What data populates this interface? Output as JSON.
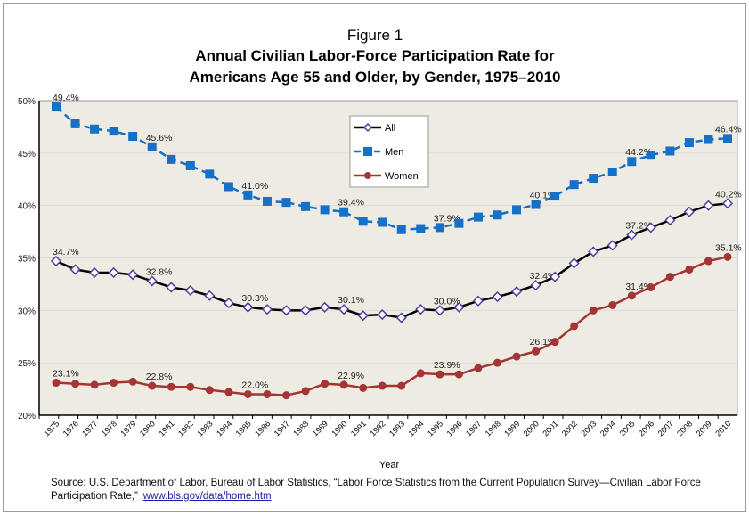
{
  "chart_data": {
    "type": "line",
    "title_lines": [
      "Figure 1",
      "Annual Civilian Labor-Force Participation Rate for",
      "Americans Age 55 and Older, by Gender, 1975–2010"
    ],
    "xlabel": "Year",
    "ylabel": "",
    "ylim": [
      20,
      50
    ],
    "yticks": [
      "20%",
      "25%",
      "30%",
      "35%",
      "40%",
      "45%",
      "50%"
    ],
    "ytick_values": [
      20,
      25,
      30,
      35,
      40,
      45,
      50
    ],
    "x": [
      "1975",
      "1976",
      "1977",
      "1978",
      "1979",
      "1980",
      "1981",
      "1982",
      "1983",
      "1984",
      "1985",
      "1986",
      "1987",
      "1988",
      "1989",
      "1990",
      "1991",
      "1992",
      "1993",
      "1994",
      "1995",
      "1996",
      "1997",
      "1998",
      "1999",
      "2000",
      "2001",
      "2002",
      "2003",
      "2004",
      "2005",
      "2006",
      "2007",
      "2008",
      "2009",
      "2010"
    ],
    "grid": true,
    "legend_position": "top-center",
    "background": "#EEEBE2",
    "series": [
      {
        "name": "All",
        "color": "#000000",
        "marker": "open-diamond",
        "marker_color": "#4B3FA0",
        "dashed": false,
        "values": [
          34.7,
          33.9,
          33.6,
          33.6,
          33.4,
          32.8,
          32.2,
          31.9,
          31.4,
          30.7,
          30.3,
          30.1,
          30.0,
          30.0,
          30.3,
          30.1,
          29.5,
          29.6,
          29.3,
          30.1,
          30.0,
          30.3,
          30.9,
          31.3,
          31.8,
          32.4,
          33.2,
          34.5,
          35.6,
          36.2,
          37.2,
          37.9,
          38.6,
          39.4,
          40.0,
          40.2
        ],
        "labels": {
          "1975": "34.7%",
          "1980": "32.8%",
          "1985": "30.3%",
          "1990": "30.1%",
          "1995": "30.0%",
          "2000": "32.4%",
          "2005": "37.2%",
          "2010": "40.2%"
        }
      },
      {
        "name": "Men",
        "color": "#1570C8",
        "marker": "square",
        "marker_color": "#1570C8",
        "dashed": true,
        "values": [
          49.4,
          47.8,
          47.3,
          47.1,
          46.6,
          45.6,
          44.4,
          43.8,
          43.0,
          41.8,
          41.0,
          40.4,
          40.3,
          39.9,
          39.6,
          39.4,
          38.5,
          38.4,
          37.7,
          37.8,
          37.9,
          38.3,
          38.9,
          39.1,
          39.6,
          40.1,
          40.9,
          42.0,
          42.6,
          43.2,
          44.2,
          44.8,
          45.2,
          46.0,
          46.3,
          46.4
        ],
        "labels": {
          "1975": "49.4%",
          "1980": "45.6%",
          "1985": "41.0%",
          "1990": "39.4%",
          "1995": "37.9%",
          "2000": "40.1%",
          "2005": "44.2%",
          "2010": "46.4%"
        }
      },
      {
        "name": "Women",
        "color": "#A33535",
        "marker": "circle",
        "marker_color": "#A33535",
        "dashed": false,
        "values": [
          23.1,
          23.0,
          22.9,
          23.1,
          23.2,
          22.8,
          22.7,
          22.7,
          22.4,
          22.2,
          22.0,
          22.0,
          21.9,
          22.3,
          23.0,
          22.9,
          22.6,
          22.8,
          22.8,
          24.0,
          23.9,
          23.9,
          24.5,
          25.0,
          25.6,
          26.1,
          27.0,
          28.5,
          30.0,
          30.5,
          31.4,
          32.2,
          33.2,
          33.9,
          34.7,
          35.1
        ],
        "labels": {
          "1975": "23.1%",
          "1980": "22.8%",
          "1985": "22.0%",
          "1990": "22.9%",
          "1995": "23.9%",
          "2000": "26.1%",
          "2005": "31.4%",
          "2010": "35.1%"
        }
      }
    ]
  },
  "source": {
    "text": "Source: U.S. Department of Labor, Bureau of Labor Statistics, “Labor Force Statistics from the Current Population Survey—Civilian Labor Force Participation Rate,”",
    "link": "www.bls.gov/data/home.htm"
  }
}
